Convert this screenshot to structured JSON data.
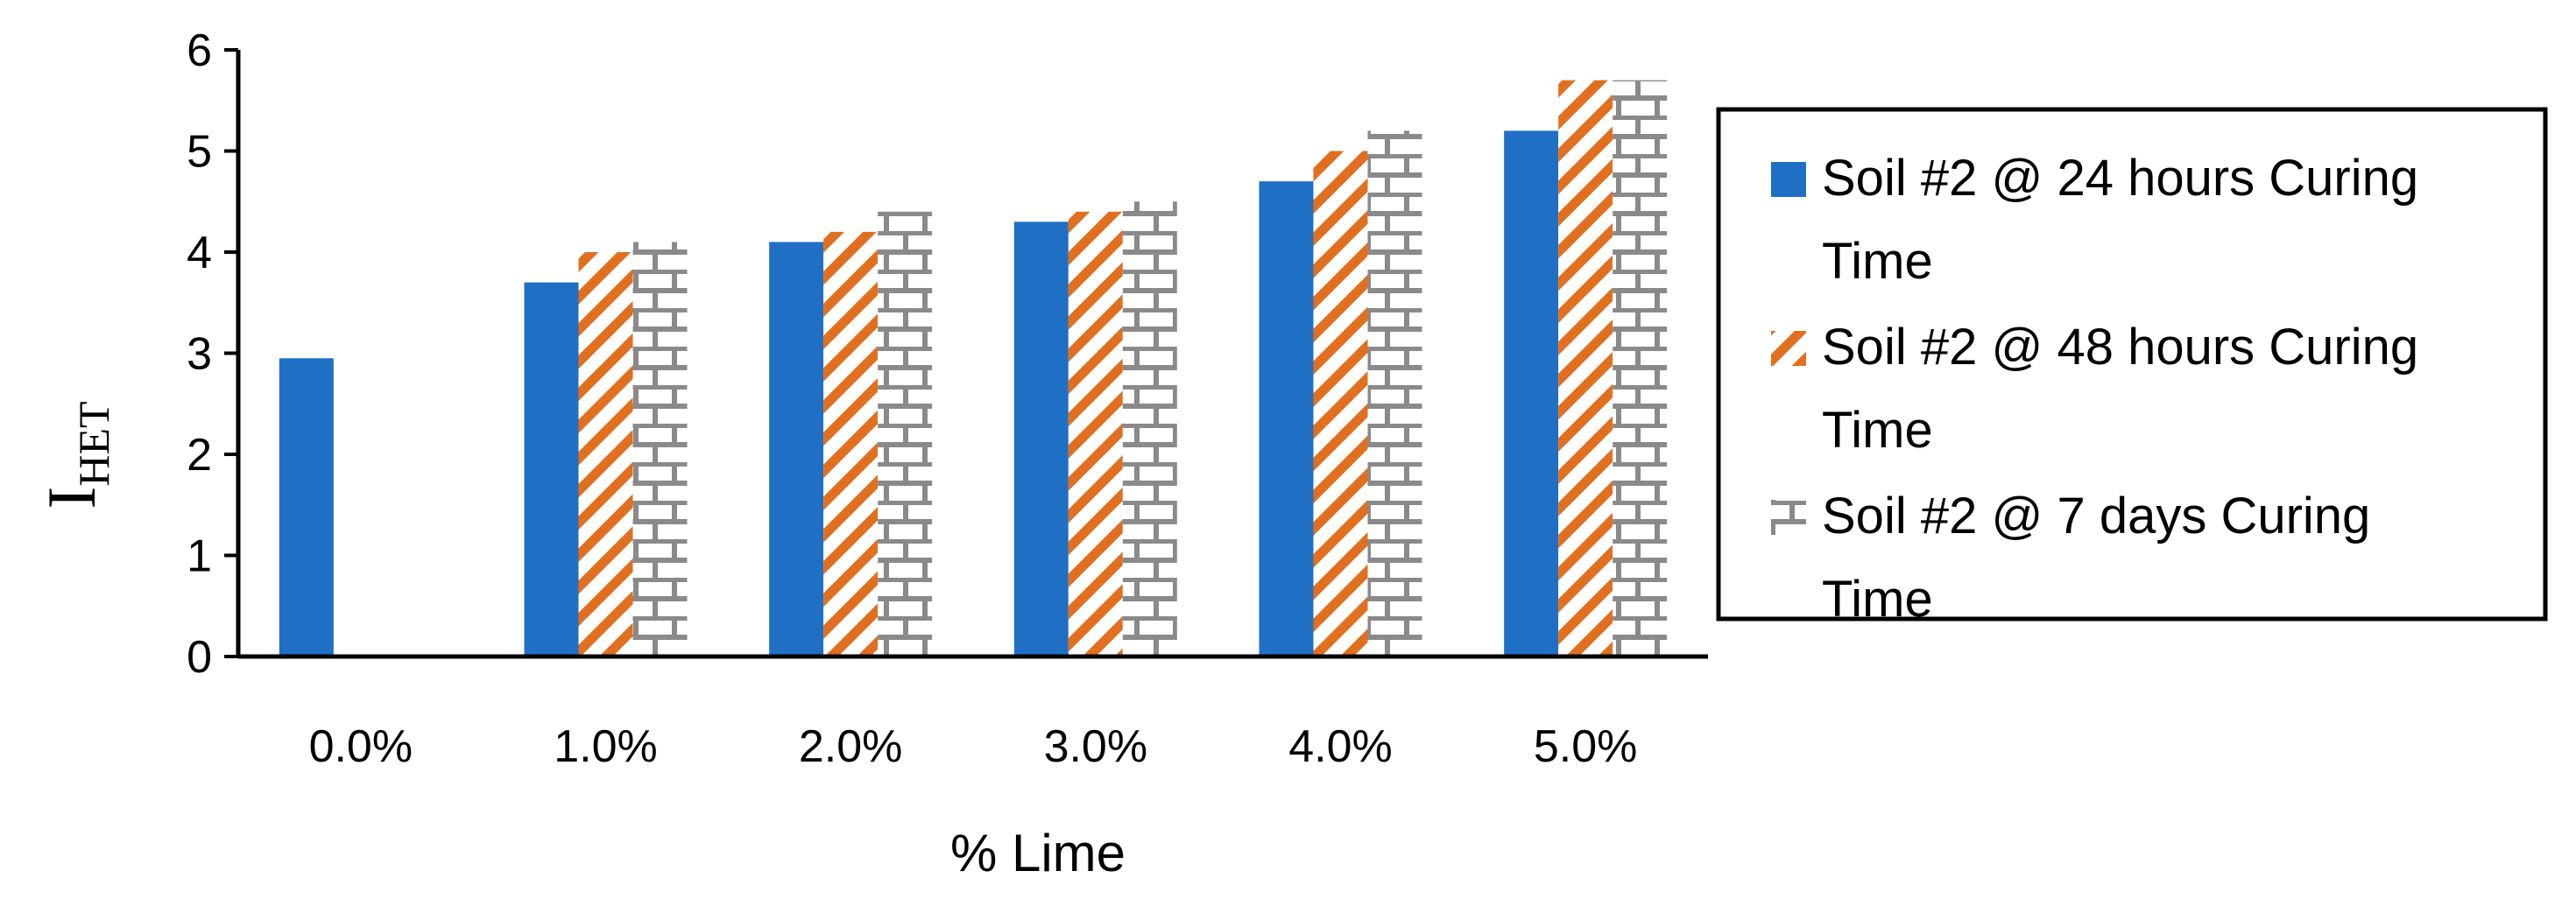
{
  "chart_data": {
    "type": "bar",
    "categories": [
      "0.0%",
      "1.0%",
      "2.0%",
      "3.0%",
      "4.0%",
      "5.0%"
    ],
    "series": [
      {
        "name": "Soil #2 @ 24 hours Curing Time",
        "values": [
          2.95,
          3.7,
          4.1,
          4.3,
          4.7,
          5.2
        ],
        "color": "#1f6fc5",
        "pattern": "solid"
      },
      {
        "name": "Soil #2 @ 48 hours Curing Time",
        "values": [
          null,
          4.0,
          4.2,
          4.4,
          5.0,
          5.7
        ],
        "color": "#e07020",
        "pattern": "diagonal-stripes"
      },
      {
        "name": "Soil #2 @ 7 days Curing Time",
        "values": [
          null,
          4.1,
          4.4,
          4.5,
          5.2,
          5.7
        ],
        "color": "#8a8a8a",
        "pattern": "brick"
      }
    ],
    "xlabel": "% Lime",
    "ylabel": "I",
    "ylabel_subscript": "HET",
    "ylim": [
      0,
      6
    ],
    "yticks": [
      "0",
      "1",
      "2",
      "3",
      "4",
      "5",
      "6"
    ],
    "grid": false,
    "legend_position": "right"
  }
}
